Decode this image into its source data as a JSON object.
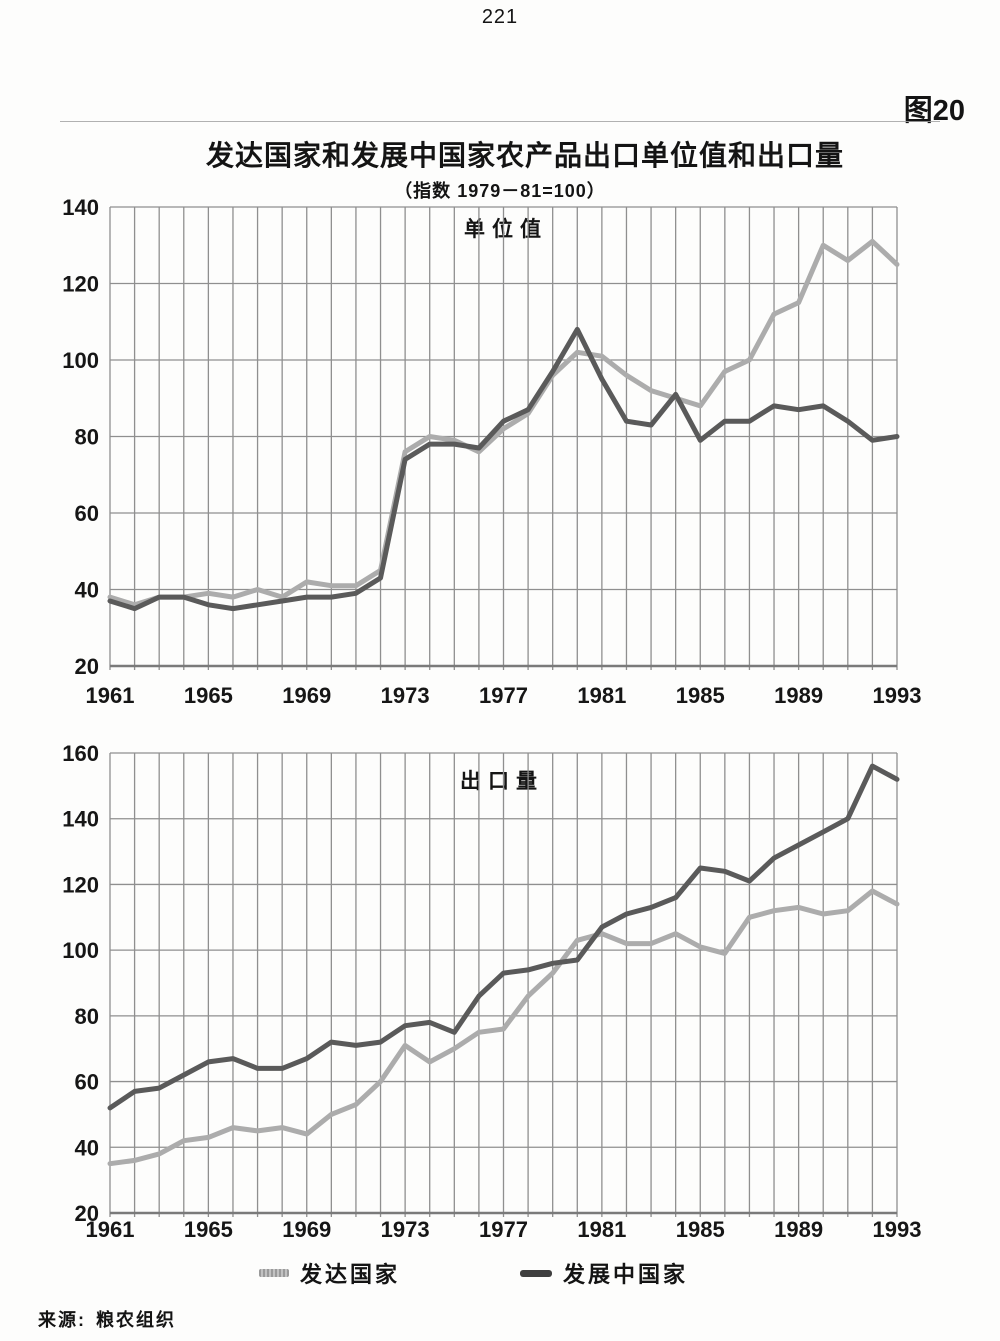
{
  "page": {
    "number": "221",
    "figure_label": "图20",
    "title": "发达国家和发展中国家农产品出口单位值和出口量",
    "subtitle": "（指数 1979－81=100）",
    "source_label": "来源:",
    "source_text": "粮农组织"
  },
  "legend": {
    "developed": {
      "label": "发达国家",
      "color": "#acacac"
    },
    "developing": {
      "label": "发展中国家",
      "color": "#5a5a5a"
    }
  },
  "chart_data": [
    {
      "type": "line",
      "title": "单位值",
      "x": [
        1961,
        1962,
        1963,
        1964,
        1965,
        1966,
        1967,
        1968,
        1969,
        1970,
        1971,
        1972,
        1973,
        1974,
        1975,
        1976,
        1977,
        1978,
        1979,
        1980,
        1981,
        1982,
        1983,
        1984,
        1985,
        1986,
        1987,
        1988,
        1989,
        1990,
        1991,
        1992,
        1993
      ],
      "x_tick_labels": [
        "1961",
        "1965",
        "1969",
        "1973",
        "1977",
        "1981",
        "1985",
        "1989",
        "1993"
      ],
      "ylim": [
        20,
        140
      ],
      "ytick_interval": 20,
      "grid": "both",
      "legend_position": "bottom-shared",
      "series": [
        {
          "name": "发达国家",
          "color": "#acacac",
          "values": [
            38,
            36,
            38,
            38,
            39,
            38,
            40,
            38,
            42,
            41,
            41,
            45,
            76,
            80,
            79,
            76,
            82,
            86,
            96,
            102,
            101,
            96,
            92,
            90,
            88,
            97,
            100,
            112,
            115,
            130,
            126,
            131,
            125
          ]
        },
        {
          "name": "发展中国家",
          "color": "#5a5a5a",
          "values": [
            37,
            35,
            38,
            38,
            36,
            35,
            36,
            37,
            38,
            38,
            39,
            43,
            74,
            78,
            78,
            77,
            84,
            87,
            97,
            108,
            95,
            84,
            83,
            91,
            79,
            84,
            84,
            88,
            87,
            88,
            84,
            79,
            80
          ]
        }
      ]
    },
    {
      "type": "line",
      "title": "出口量",
      "x": [
        1961,
        1962,
        1963,
        1964,
        1965,
        1966,
        1967,
        1968,
        1969,
        1970,
        1971,
        1972,
        1973,
        1974,
        1975,
        1976,
        1977,
        1978,
        1979,
        1980,
        1981,
        1982,
        1983,
        1984,
        1985,
        1986,
        1987,
        1988,
        1989,
        1990,
        1991,
        1992,
        1993
      ],
      "x_tick_labels": [
        "1961",
        "1965",
        "1969",
        "1973",
        "1977",
        "1981",
        "1985",
        "1989",
        "1993"
      ],
      "ylim": [
        20,
        160
      ],
      "ytick_interval": 20,
      "grid": "both",
      "legend_position": "bottom-shared",
      "series": [
        {
          "name": "发达国家",
          "color": "#acacac",
          "values": [
            35,
            36,
            38,
            42,
            43,
            46,
            45,
            46,
            44,
            50,
            53,
            60,
            71,
            66,
            70,
            75,
            76,
            86,
            93,
            103,
            105,
            102,
            102,
            105,
            101,
            99,
            110,
            112,
            113,
            111,
            112,
            118,
            114
          ]
        },
        {
          "name": "发展中国家",
          "color": "#5a5a5a",
          "values": [
            52,
            57,
            58,
            62,
            66,
            67,
            64,
            64,
            67,
            72,
            71,
            72,
            77,
            78,
            75,
            86,
            93,
            94,
            96,
            97,
            107,
            111,
            113,
            116,
            125,
            124,
            121,
            128,
            132,
            136,
            140,
            156,
            152
          ]
        }
      ]
    }
  ]
}
